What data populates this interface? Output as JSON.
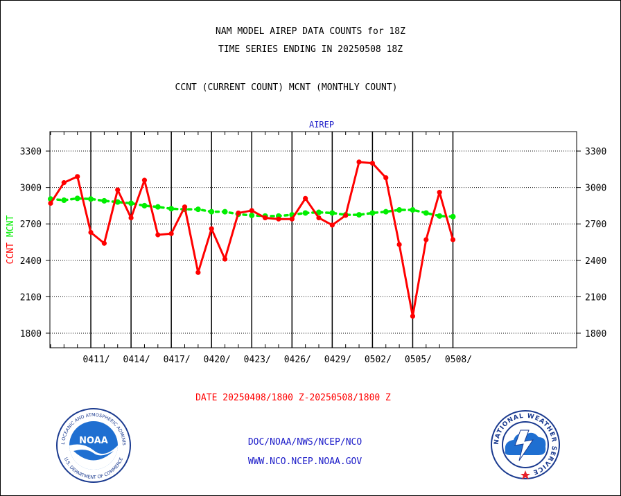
{
  "chart_data": {
    "type": "line",
    "title": [
      "NAM MODEL AIREP DATA COUNTS for 18Z",
      "TIME SERIES ENDING IN 20250508 18Z"
    ],
    "subtitle": "CCNT (CURRENT COUNT) MCNT (MONTHLY COUNT)",
    "panel_label": "AIREP",
    "ylabel": {
      "ccnt": "CCNT",
      "mcnt": "MCNT"
    },
    "xlabel": "DATE 20250408/1800 Z-20250508/1800 Z",
    "ylim": [
      1680,
      3460
    ],
    "yticks": [
      1800,
      2100,
      2400,
      2700,
      3000,
      3300
    ],
    "x_start_day": 0,
    "xlim": [
      0,
      30
    ],
    "xticks": [
      {
        "x": 3,
        "label": "0411/"
      },
      {
        "x": 6,
        "label": "0414/"
      },
      {
        "x": 9,
        "label": "0417/"
      },
      {
        "x": 12,
        "label": "0420/"
      },
      {
        "x": 15,
        "label": "0423/"
      },
      {
        "x": 18,
        "label": "0426/"
      },
      {
        "x": 21,
        "label": "0429/"
      },
      {
        "x": 24,
        "label": "0502/"
      },
      {
        "x": 27,
        "label": "0505/"
      },
      {
        "x": 30,
        "label": "0508/"
      }
    ],
    "grid": true,
    "series": [
      {
        "name": "CCNT",
        "color": "#ff0000",
        "values": [
          2870,
          3040,
          3090,
          2630,
          2540,
          2980,
          2750,
          3060,
          2610,
          2620,
          2840,
          2300,
          2660,
          2410,
          2790,
          2810,
          2750,
          2740,
          2740,
          2910,
          2750,
          2690,
          2770,
          3210,
          3200,
          3080,
          2530,
          1940,
          2570,
          2960,
          2570
        ]
      },
      {
        "name": "MCNT",
        "color": "#00ee00",
        "values": [
          2905,
          2895,
          2910,
          2905,
          2890,
          2880,
          2870,
          2850,
          2840,
          2825,
          2820,
          2820,
          2800,
          2800,
          2780,
          2770,
          2765,
          2765,
          2775,
          2790,
          2795,
          2790,
          2775,
          2775,
          2790,
          2800,
          2815,
          2815,
          2790,
          2765,
          2760
        ]
      }
    ]
  },
  "footer": {
    "line1": "DOC/NOAA/NWS/NCEP/NCO",
    "line2": "WWW.NCO.NCEP.NOAA.GOV"
  },
  "logos": {
    "noaa": {
      "center_text": "NOAA",
      "ring_text": "NATIONAL OCEANIC AND ATMOSPHERIC ADMINISTRATION",
      "bottom_text": "U.S. DEPARTMENT OF COMMERCE"
    },
    "nws": {
      "ring_text": "NATIONAL WEATHER SERVICE"
    }
  }
}
